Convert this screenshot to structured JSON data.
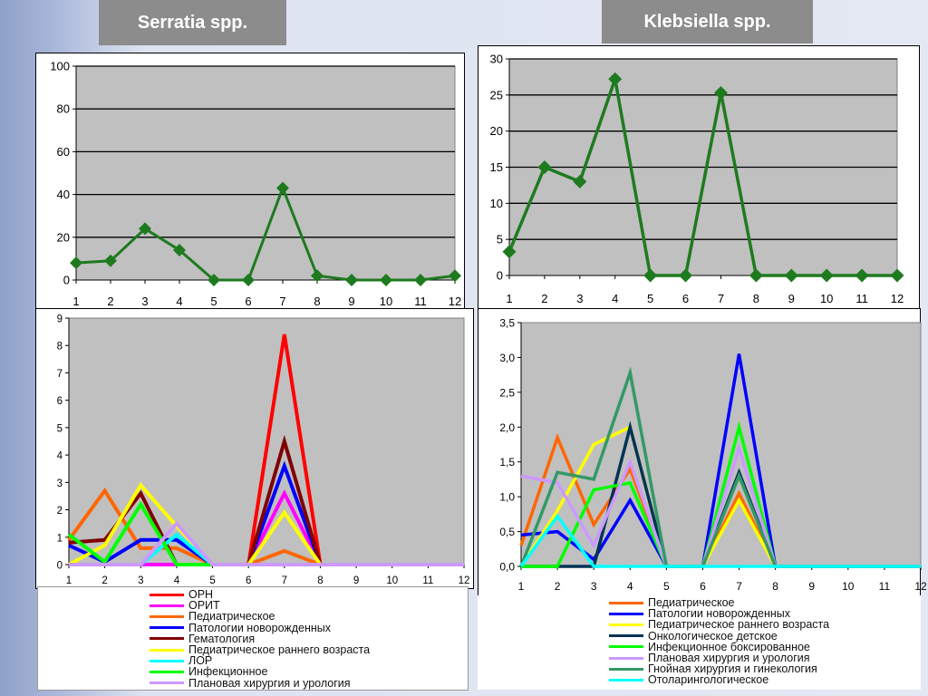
{
  "titles": {
    "left": "Serratia spp.",
    "right": "Klebsiella spp."
  },
  "colors": {
    "plot_bg": "#c0c0c0",
    "main_line": "#1e7a1e"
  },
  "chart_data": [
    {
      "id": "serratia-total",
      "type": "line",
      "categories": [
        "1",
        "2",
        "3",
        "4",
        "5",
        "6",
        "7",
        "8",
        "9",
        "10",
        "11",
        "12"
      ],
      "ylim": [
        0,
        100
      ],
      "yticks": [
        "0",
        "20",
        "40",
        "60",
        "80",
        "100"
      ],
      "grid": true,
      "series": [
        {
          "color": "#1e7a1e",
          "marker": "diamond",
          "values": [
            8,
            9,
            24,
            14,
            0,
            0,
            43,
            2,
            0,
            0,
            0,
            2
          ]
        }
      ]
    },
    {
      "id": "klebsiella-total",
      "type": "line",
      "categories": [
        "1",
        "2",
        "3",
        "4",
        "5",
        "6",
        "7",
        "8",
        "9",
        "10",
        "11",
        "12"
      ],
      "ylim": [
        0,
        30
      ],
      "yticks": [
        "0",
        "5",
        "10",
        "15",
        "20",
        "25",
        "30"
      ],
      "grid": true,
      "series": [
        {
          "color": "#1e7a1e",
          "marker": "diamond",
          "values": [
            3.3,
            15,
            13,
            27.2,
            0,
            0,
            25.3,
            0,
            0,
            0,
            0,
            0
          ]
        }
      ]
    },
    {
      "id": "serratia-departments",
      "type": "line",
      "categories": [
        "1",
        "2",
        "3",
        "4",
        "5",
        "6",
        "7",
        "8",
        "9",
        "10",
        "11",
        "12"
      ],
      "ylim": [
        0,
        9
      ],
      "yticks": [
        "0",
        "1",
        "2",
        "3",
        "4",
        "5",
        "6",
        "7",
        "8",
        "9"
      ],
      "grid": false,
      "legend_placement": "bottom",
      "series": [
        {
          "name": "ОРН",
          "color": "#ff0000",
          "values": [
            0,
            0,
            0,
            0,
            0,
            0,
            8.4,
            0,
            0,
            0,
            0,
            0
          ]
        },
        {
          "name": "ОРИТ",
          "color": "#ff00ff",
          "values": [
            0,
            0,
            0,
            0,
            0,
            0,
            2.6,
            0,
            0,
            0,
            0,
            0
          ]
        },
        {
          "name": "Педиатрическое",
          "color": "#ff6600",
          "values": [
            0.9,
            2.7,
            0.6,
            0.6,
            0,
            0,
            0.5,
            0,
            0,
            0,
            0,
            0
          ]
        },
        {
          "name": "Патологии новорожденных",
          "color": "#0000ff",
          "values": [
            0.7,
            0.1,
            0.9,
            0.9,
            0,
            0,
            3.6,
            0,
            0,
            0,
            0,
            0
          ]
        },
        {
          "name": "Гематология",
          "color": "#800000",
          "values": [
            0.8,
            0.9,
            2.6,
            0,
            0,
            0,
            4.5,
            0,
            0,
            0,
            0,
            0
          ]
        },
        {
          "name": "Педиатрическое раннего возраста",
          "color": "#ffff00",
          "values": [
            0,
            0.7,
            2.9,
            1.4,
            0,
            0,
            1.9,
            0,
            0,
            0,
            0,
            0
          ]
        },
        {
          "name": "ЛОР",
          "color": "#00ffff",
          "values": [
            0,
            0,
            0,
            1.1,
            0,
            0,
            0,
            0,
            0,
            0,
            0,
            0
          ]
        },
        {
          "name": "Инфекционное",
          "color": "#00ff00",
          "values": [
            1.1,
            0.1,
            2.2,
            0,
            0,
            0,
            0,
            0,
            0,
            0,
            0,
            0
          ]
        },
        {
          "name": "Плановая хирургия и урология",
          "color": "#cc99ff",
          "values": [
            0,
            0,
            0,
            1.5,
            0,
            0,
            0,
            0,
            0,
            0,
            0,
            0
          ]
        }
      ]
    },
    {
      "id": "klebsiella-departments",
      "type": "line",
      "categories": [
        "1",
        "2",
        "3",
        "4",
        "5",
        "6",
        "7",
        "8",
        "9",
        "10",
        "11",
        "12"
      ],
      "ylim": [
        0,
        3.5
      ],
      "yticks": [
        "0,0",
        "0,5",
        "1,0",
        "1,5",
        "2,0",
        "2,5",
        "3,0",
        "3,5"
      ],
      "grid": false,
      "legend_placement": "bottom",
      "series": [
        {
          "name": "Педиатрическое",
          "color": "#ff6600",
          "values": [
            0.3,
            1.85,
            0.6,
            1.4,
            0,
            0,
            1.05,
            0,
            0,
            0,
            0,
            0
          ]
        },
        {
          "name": "Патологии новорожденных",
          "color": "#0000ff",
          "values": [
            0.45,
            0.5,
            0.1,
            0.95,
            0,
            0,
            3.05,
            0,
            0,
            0,
            0,
            0
          ]
        },
        {
          "name": "Педиатрическое раннего возраста",
          "color": "#ffff00",
          "values": [
            0,
            0.8,
            1.75,
            2.0,
            0,
            0,
            0.95,
            0,
            0,
            0,
            0,
            0
          ]
        },
        {
          "name": "Онкологическое детское",
          "color": "#003355",
          "values": [
            0,
            0,
            0,
            2.0,
            0,
            0,
            1.35,
            0,
            0,
            0,
            0,
            0
          ]
        },
        {
          "name": "Инфекционное боксированное",
          "color": "#00ff00",
          "values": [
            0,
            0,
            1.1,
            1.2,
            0,
            0,
            2.0,
            0,
            0,
            0,
            0,
            0
          ]
        },
        {
          "name": "Плановая хирургия и урология",
          "color": "#cc99ff",
          "values": [
            1.3,
            1.2,
            0.3,
            1.5,
            0,
            0,
            1.7,
            0,
            0,
            0,
            0,
            0
          ]
        },
        {
          "name": "Гнойная хирургия  и гинекология",
          "color": "#339966",
          "values": [
            0,
            1.35,
            1.25,
            2.78,
            0,
            0,
            1.3,
            0,
            0,
            0,
            0,
            0
          ]
        },
        {
          "name": "Отоларингологическое",
          "color": "#00ffff",
          "values": [
            0,
            0.72,
            0,
            0,
            0,
            0,
            0,
            0,
            0,
            0,
            0,
            0
          ]
        }
      ]
    }
  ]
}
